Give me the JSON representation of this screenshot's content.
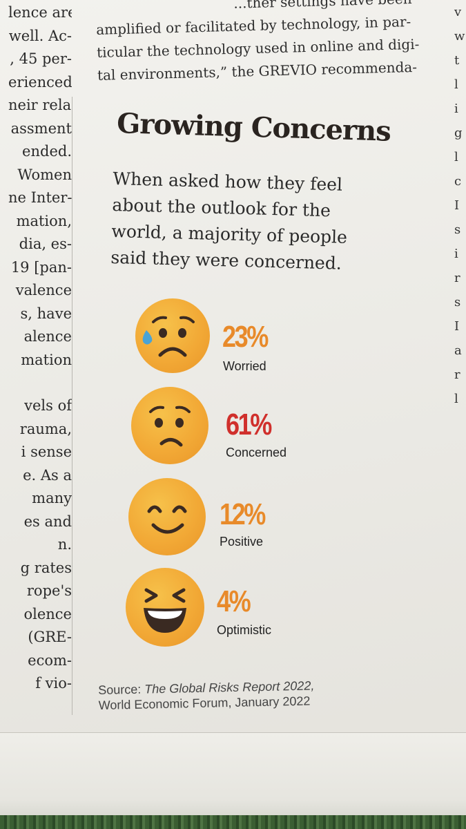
{
  "left_column_lines": [
    "lence are",
    "well. Ac-",
    ", 45 per-",
    "erienced",
    "neir rela-",
    "assment",
    "ended.",
    "Women",
    "ne Inter-",
    "mation,",
    "dia, es-",
    "19 [pan-",
    "valence",
    "s, have",
    "alence",
    "mation",
    "",
    "vels of",
    "rauma,",
    "i sense",
    "e. As a",
    "many",
    "es and",
    "n.",
    "g rates",
    "rope's",
    "olence",
    "(GRE-",
    "ecom-",
    "f vio-"
  ],
  "top_text_lines": [
    "...ther settings have been",
    "amplified or facilitated by technology, in par-",
    "ticular the technology used in online and digi-",
    "tal environments,” the GREVIO recommenda-"
  ],
  "right_column_letters": [
    "v",
    "w",
    "",
    "t",
    "l",
    "i",
    "g",
    "l",
    "c",
    "I",
    "",
    "",
    "s",
    "i",
    "",
    "",
    "r",
    "",
    "",
    "s",
    "",
    "",
    "",
    "",
    "",
    "I",
    "a",
    "",
    "r",
    "l"
  ],
  "headline": "Growing Concerns",
  "intro_lines": [
    "When asked how they feel",
    "about the outlook for the",
    "world, a majority of people",
    "said they were concerned."
  ],
  "items": [
    {
      "percent": "23%",
      "label": "Worried",
      "icon": "worried-face-icon",
      "color": "#e88a2a"
    },
    {
      "percent": "61%",
      "label": "Concerned",
      "icon": "concerned-face-icon",
      "color": "#d0302c"
    },
    {
      "percent": "12%",
      "label": "Positive",
      "icon": "smiling-face-icon",
      "color": "#e88a2a"
    },
    {
      "percent": "4%",
      "label": "Optimistic",
      "icon": "laughing-face-icon",
      "color": "#e88a2a"
    }
  ],
  "source_prefix": "Source: ",
  "source_title": "The Global Risks Report 2022,",
  "source_line2": "World Economic Forum, January 2022",
  "colors": {
    "face": "#f2a936",
    "orange_pct": "#e88a2a",
    "red_pct": "#d0302c",
    "eyes": "#3a2a22",
    "tear": "#4aa3d6"
  }
}
